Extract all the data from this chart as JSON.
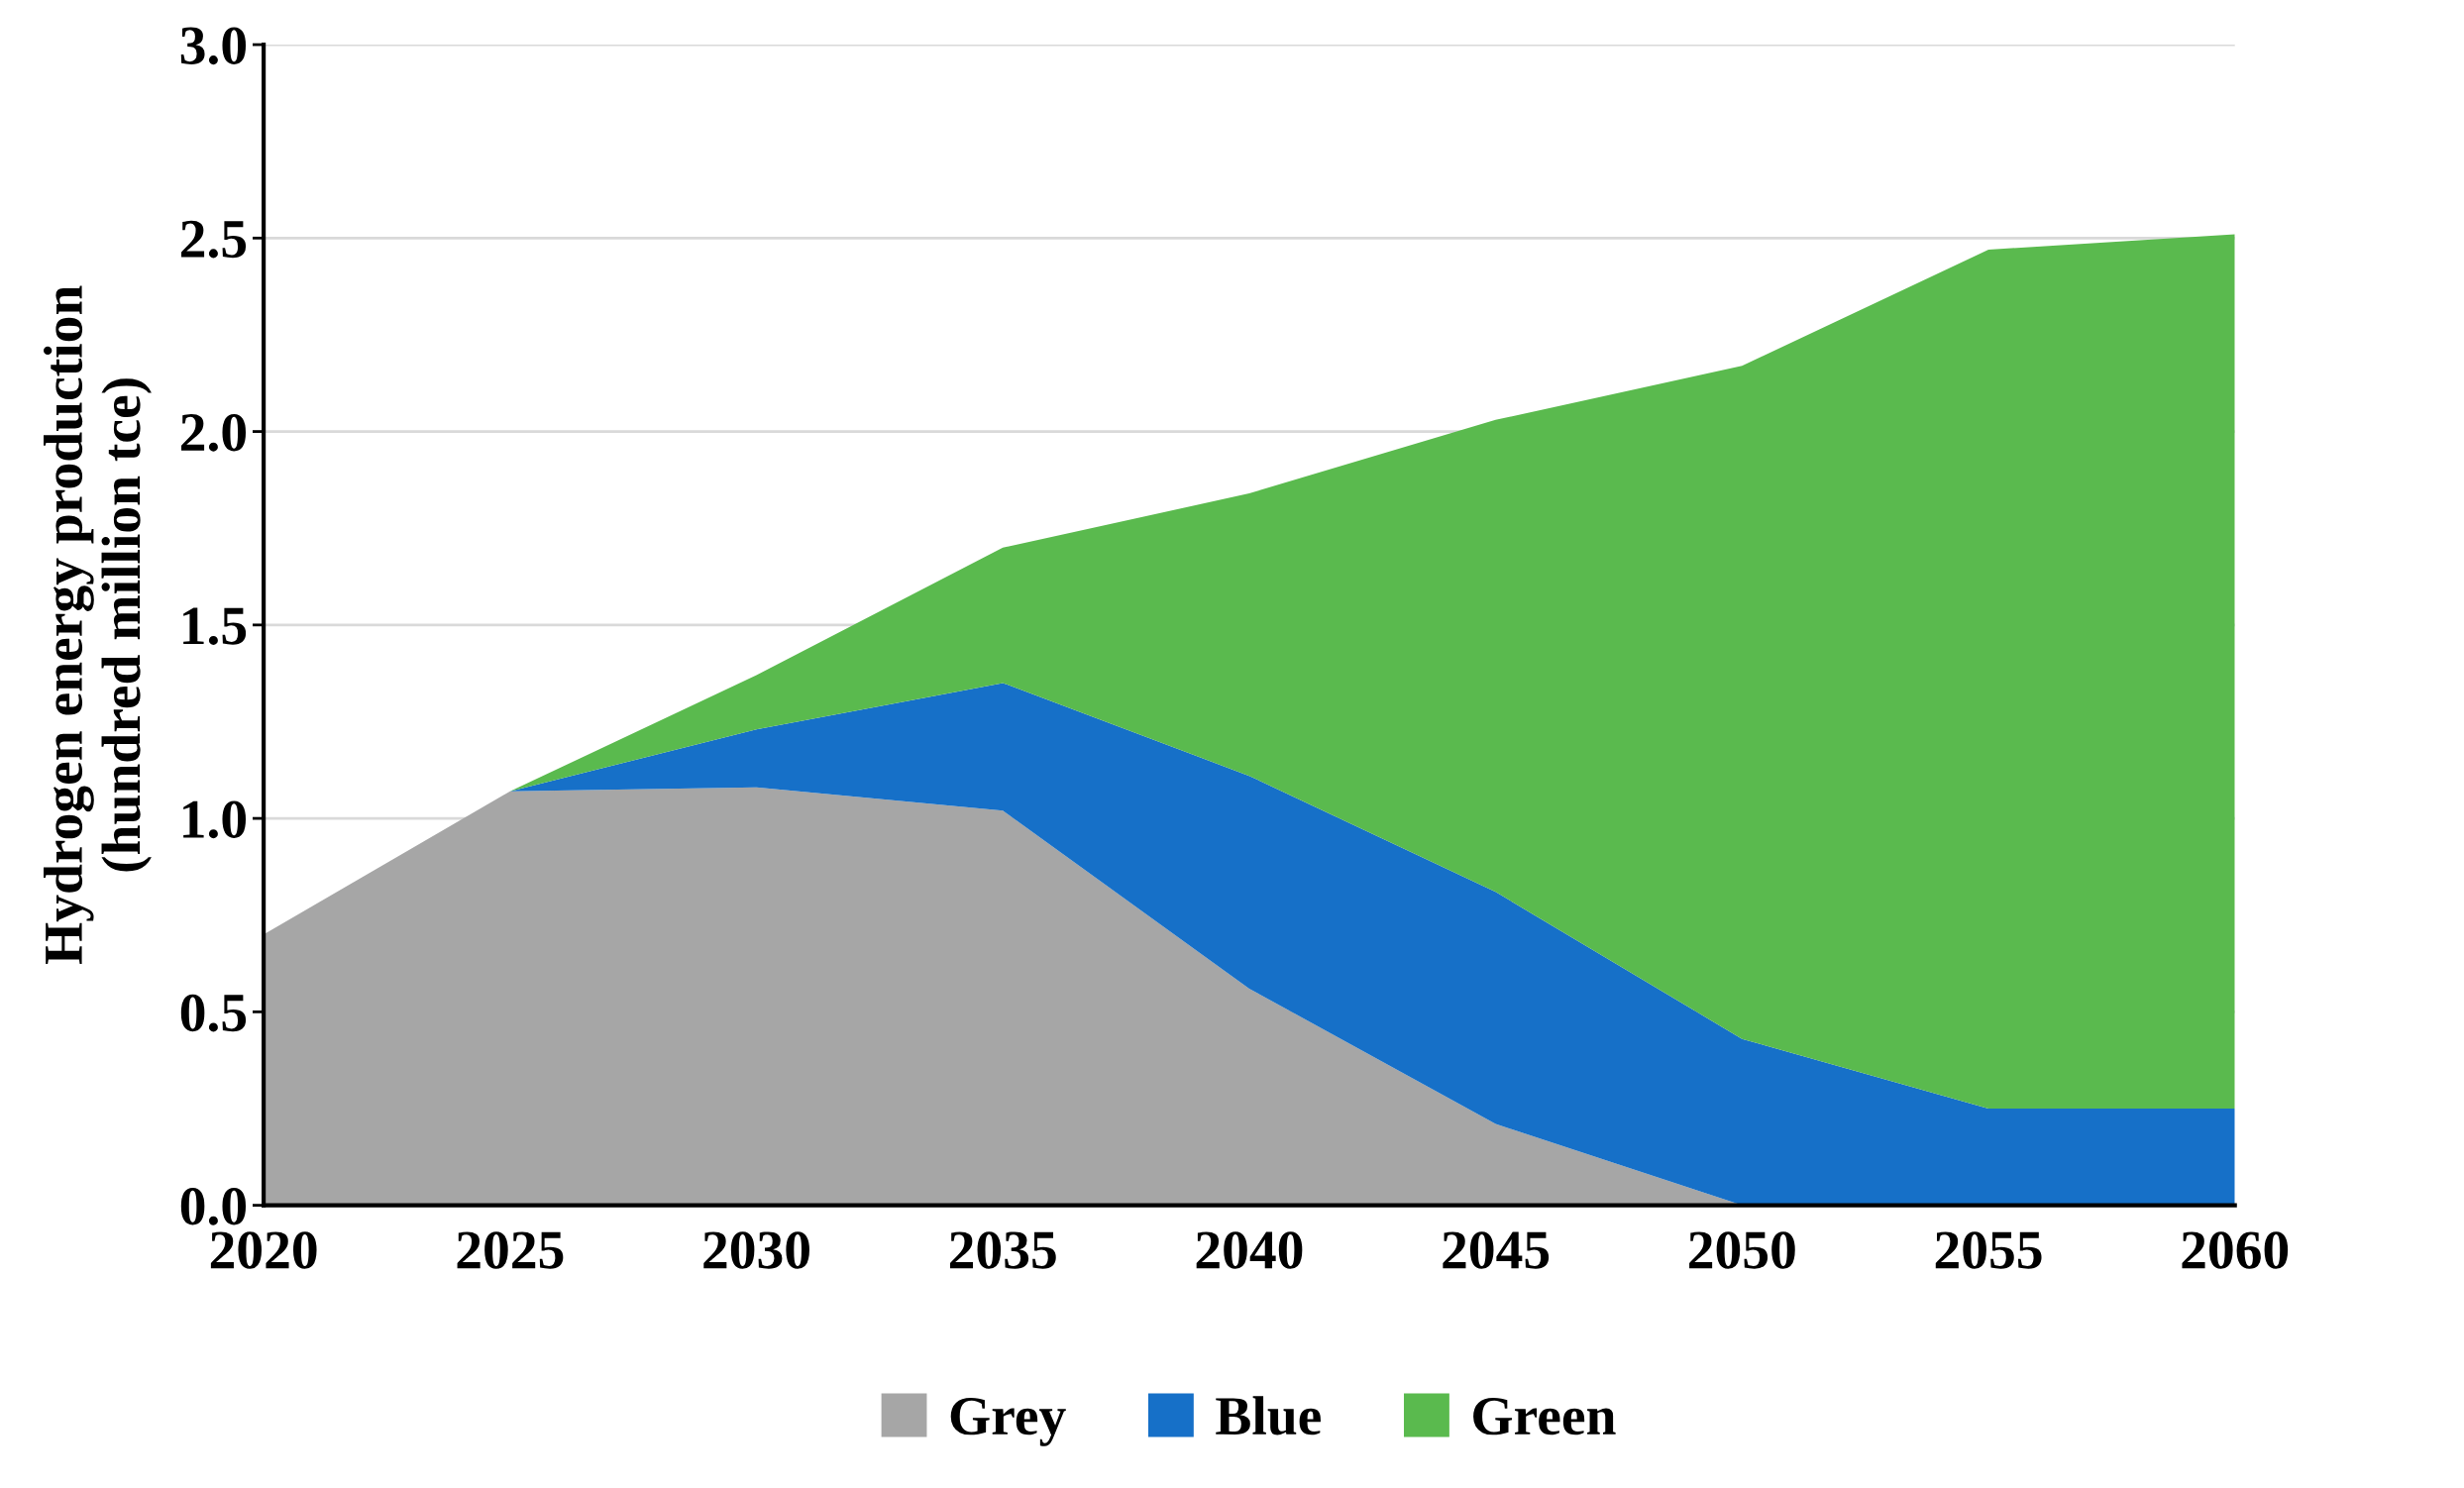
{
  "chart_data": {
    "type": "area",
    "stacked": true,
    "ylabel": "Hydrogen energy production\n(hundred million tce)",
    "x": [
      2020,
      2025,
      2030,
      2035,
      2040,
      2045,
      2050,
      2055,
      2060
    ],
    "series": [
      {
        "name": "Grey",
        "color": "#a6a6a6",
        "values": [
          0.7,
          1.07,
          1.08,
          1.02,
          0.56,
          0.21,
          0.0,
          0.0,
          0.0
        ]
      },
      {
        "name": "Blue",
        "color": "#1670c8",
        "values": [
          0.0,
          0.0,
          0.15,
          0.33,
          0.55,
          0.6,
          0.43,
          0.25,
          0.25
        ]
      },
      {
        "name": "Green",
        "color": "#5aba4e",
        "values": [
          0.0,
          0.0,
          0.14,
          0.35,
          0.73,
          1.22,
          1.74,
          2.22,
          2.26
        ]
      }
    ],
    "xlim": [
      2020,
      2060
    ],
    "xticks": [
      2020,
      2025,
      2030,
      2035,
      2040,
      2045,
      2050,
      2055,
      2060
    ],
    "ylim": [
      0,
      3.0
    ],
    "yticks": [
      {
        "value": 0,
        "label": "0.0"
      },
      {
        "value": 0.5,
        "label": "0.5"
      },
      {
        "value": 1.0,
        "label": "1.0"
      },
      {
        "value": 1.5,
        "label": "1.5"
      },
      {
        "value": 2.0,
        "label": "2.0"
      },
      {
        "value": 2.5,
        "label": "2.5"
      },
      {
        "value": 3.0,
        "label": "3.0"
      }
    ],
    "grid": "y",
    "legend": "bottom"
  }
}
